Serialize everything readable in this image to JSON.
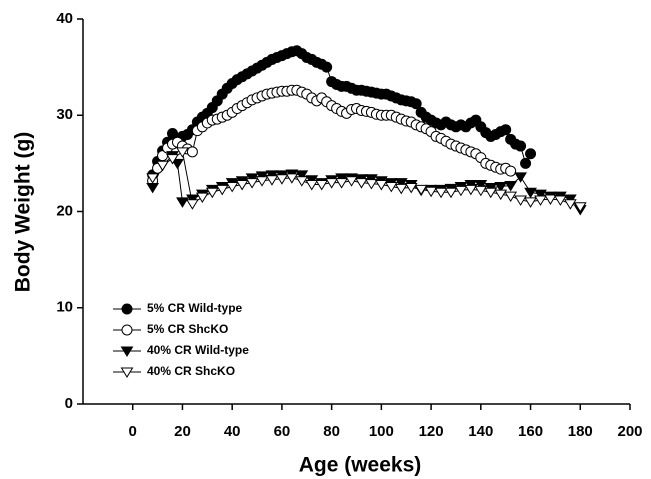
{
  "chart_data": {
    "type": "line",
    "x_label": "Age (weeks)",
    "y_label": "Body Weight (g)",
    "xlim": [
      -20,
      200
    ],
    "ylim": [
      0,
      40
    ],
    "xticks": [
      0,
      20,
      40,
      60,
      80,
      100,
      120,
      140,
      160,
      180,
      200
    ],
    "yticks": [
      0,
      10,
      20,
      30,
      40
    ],
    "grid": false,
    "legend": "lower left",
    "series": [
      {
        "name": "5% CR Wild-type",
        "color": "#000000",
        "marker": "circle",
        "filled": true,
        "x": [
          8,
          10,
          12,
          14,
          16,
          18,
          20,
          22,
          24,
          26,
          28,
          30,
          32,
          34,
          36,
          38,
          40,
          42,
          44,
          46,
          48,
          50,
          52,
          54,
          56,
          58,
          60,
          62,
          64,
          66,
          68,
          70,
          72,
          74,
          76,
          78,
          80,
          82,
          84,
          86,
          88,
          90,
          92,
          94,
          96,
          98,
          100,
          102,
          104,
          106,
          108,
          110,
          112,
          114,
          116,
          118,
          120,
          122,
          124,
          126,
          128,
          130,
          132,
          134,
          136,
          138,
          140,
          142,
          144,
          146,
          148,
          150,
          152,
          154,
          156,
          158,
          160
        ],
        "values": [
          23.8,
          25.2,
          26.3,
          27.2,
          28.1,
          27.3,
          27.8,
          28.0,
          28.5,
          29.3,
          29.8,
          30.2,
          30.8,
          31.5,
          32.2,
          32.8,
          33.3,
          33.7,
          34.0,
          34.3,
          34.6,
          34.9,
          35.2,
          35.5,
          35.8,
          36.0,
          36.2,
          36.4,
          36.6,
          36.7,
          36.4,
          36.0,
          35.8,
          35.5,
          35.3,
          35.0,
          33.5,
          33.2,
          33.0,
          33.0,
          32.8,
          32.6,
          32.6,
          32.5,
          32.4,
          32.3,
          32.2,
          32.2,
          32.0,
          31.8,
          31.6,
          31.5,
          31.4,
          31.2,
          30.3,
          29.8,
          29.5,
          29.2,
          29.0,
          29.3,
          29.0,
          28.8,
          29.0,
          28.8,
          29.2,
          29.5,
          28.8,
          28.2,
          27.8,
          28.0,
          28.3,
          28.5,
          27.5,
          27.0,
          26.8,
          25.0,
          26.0
        ]
      },
      {
        "name": "5% CR ShcKO",
        "color": "#000000",
        "marker": "circle",
        "filled": false,
        "x": [
          8,
          10,
          12,
          14,
          16,
          18,
          20,
          22,
          24,
          26,
          28,
          30,
          32,
          34,
          36,
          38,
          40,
          42,
          44,
          46,
          48,
          50,
          52,
          54,
          56,
          58,
          60,
          62,
          64,
          66,
          68,
          70,
          72,
          74,
          76,
          78,
          80,
          82,
          84,
          86,
          88,
          90,
          92,
          94,
          96,
          98,
          100,
          102,
          104,
          106,
          108,
          110,
          112,
          114,
          116,
          118,
          120,
          122,
          124,
          126,
          128,
          130,
          132,
          134,
          136,
          138,
          140,
          142,
          144,
          146,
          148,
          150,
          152
        ],
        "values": [
          23.2,
          24.5,
          25.8,
          26.6,
          27.0,
          27.2,
          26.8,
          26.5,
          26.2,
          28.4,
          28.8,
          29.2,
          29.5,
          29.6,
          29.8,
          30.0,
          30.3,
          30.7,
          31.0,
          31.3,
          31.6,
          31.8,
          32.0,
          32.2,
          32.3,
          32.4,
          32.5,
          32.5,
          32.6,
          32.6,
          32.4,
          32.2,
          31.8,
          31.5,
          31.8,
          31.4,
          31.0,
          30.7,
          30.4,
          30.2,
          30.6,
          30.7,
          30.5,
          30.4,
          30.3,
          30.1,
          30.0,
          30.0,
          30.0,
          29.8,
          29.6,
          29.4,
          29.3,
          29.0,
          28.8,
          28.6,
          28.3,
          27.8,
          27.6,
          27.3,
          27.0,
          26.8,
          26.6,
          26.4,
          26.2,
          26.0,
          25.6,
          25.0,
          24.8,
          24.6,
          24.4,
          24.5,
          24.2
        ]
      },
      {
        "name": "40% CR Wild-type",
        "color": "#000000",
        "marker": "triangle-down",
        "filled": true,
        "x": [
          8,
          12,
          16,
          18,
          20,
          24,
          28,
          32,
          36,
          40,
          44,
          48,
          52,
          56,
          60,
          64,
          68,
          72,
          76,
          80,
          84,
          88,
          92,
          96,
          100,
          104,
          108,
          112,
          116,
          120,
          124,
          128,
          132,
          136,
          140,
          144,
          148,
          152,
          156,
          160,
          164,
          168,
          172,
          176,
          180
        ],
        "values": [
          22.5,
          24.8,
          25.8,
          25.0,
          21.0,
          21.3,
          21.8,
          22.3,
          22.6,
          23.0,
          23.2,
          23.5,
          23.7,
          23.8,
          23.8,
          23.9,
          23.8,
          23.3,
          23.0,
          23.3,
          23.5,
          23.5,
          23.4,
          23.4,
          23.2,
          23.0,
          23.0,
          22.8,
          22.2,
          22.3,
          22.3,
          22.4,
          22.6,
          22.8,
          22.8,
          22.5,
          22.6,
          22.7,
          23.6,
          22.0,
          21.8,
          21.6,
          21.6,
          21.3,
          20.2
        ]
      },
      {
        "name": "40% CR ShcKO",
        "color": "#000000",
        "marker": "triangle-down",
        "filled": false,
        "x": [
          8,
          12,
          16,
          20,
          24,
          28,
          32,
          36,
          40,
          44,
          48,
          52,
          56,
          60,
          64,
          68,
          72,
          76,
          80,
          84,
          88,
          92,
          96,
          100,
          104,
          108,
          112,
          116,
          120,
          124,
          128,
          132,
          136,
          140,
          144,
          148,
          152,
          156,
          160,
          164,
          168,
          172,
          176,
          180
        ],
        "values": [
          23.5,
          24.8,
          25.5,
          26.2,
          20.8,
          21.5,
          22.0,
          22.3,
          22.6,
          22.8,
          23.0,
          23.2,
          23.3,
          23.4,
          23.5,
          23.2,
          22.8,
          22.8,
          23.0,
          23.0,
          23.2,
          23.0,
          22.9,
          22.8,
          22.6,
          22.4,
          22.5,
          22.3,
          22.1,
          22.0,
          22.0,
          22.2,
          22.3,
          22.2,
          22.0,
          21.8,
          21.6,
          21.2,
          21.0,
          21.2,
          21.3,
          21.2,
          20.8,
          20.5
        ]
      }
    ]
  }
}
